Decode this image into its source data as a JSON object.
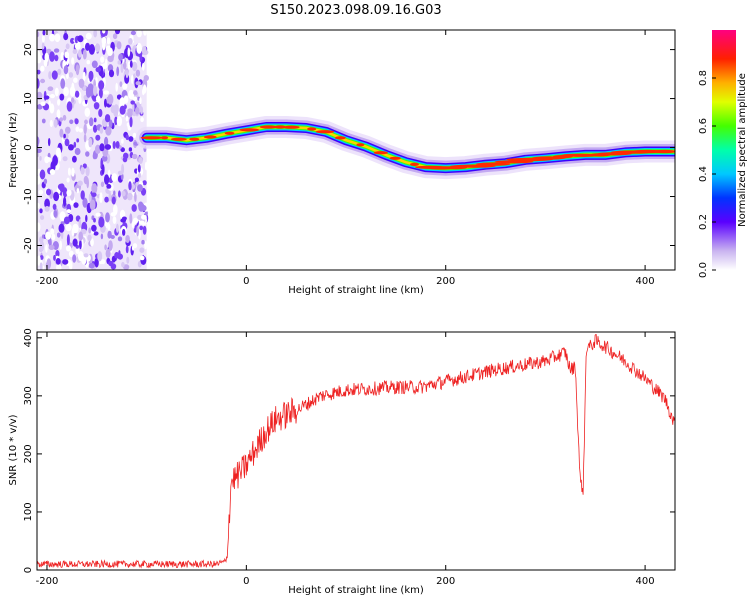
{
  "title": "S150.2023.098.09.16.G03",
  "chart_data": [
    {
      "type": "heatmap",
      "xlabel": "Height of straight line (km)",
      "ylabel": "Frequency (Hz)",
      "xlim": [
        -210,
        430
      ],
      "ylim": [
        -25,
        24
      ],
      "x_ticks": [
        -200,
        0,
        200,
        400
      ],
      "y_ticks": [
        -20,
        -10,
        0,
        10,
        20
      ],
      "colorbar": {
        "label": "Normalized spectral amplitude",
        "range": [
          0,
          1
        ],
        "ticks": [
          0.0,
          0.2,
          0.4,
          0.6,
          0.8
        ]
      },
      "noise_region_x": [
        -210,
        -100
      ],
      "ridge": {
        "x": [
          -100,
          -80,
          -60,
          -40,
          -20,
          0,
          20,
          40,
          60,
          80,
          100,
          120,
          140,
          160,
          180,
          200,
          220,
          240,
          260,
          280,
          300,
          320,
          340,
          360,
          380,
          400,
          430
        ],
        "freq": [
          2,
          2,
          1.5,
          2,
          2.8,
          3.5,
          4.2,
          4.2,
          4,
          3.2,
          1.5,
          0.2,
          -1.5,
          -3,
          -4,
          -4.2,
          -4,
          -3.5,
          -3.2,
          -2.5,
          -2.2,
          -1.8,
          -1.5,
          -1.5,
          -1,
          -0.8,
          -0.8
        ]
      }
    },
    {
      "type": "line",
      "xlabel": "Height of straight line (km)",
      "ylabel": "SNR (10 * v/v)",
      "xlim": [
        -210,
        430
      ],
      "ylim": [
        0,
        410
      ],
      "x_ticks": [
        -200,
        0,
        200,
        400
      ],
      "y_ticks": [
        0,
        100,
        200,
        300,
        400
      ],
      "color": "#ee2222",
      "envelope": {
        "x": [
          -210,
          -30,
          -20,
          -15,
          -10,
          0,
          10,
          20,
          30,
          50,
          75,
          100,
          150,
          175,
          200,
          250,
          300,
          320,
          325,
          330,
          335,
          338,
          341,
          345,
          350,
          360,
          380,
          400,
          420,
          430
        ],
        "y": [
          10,
          10,
          15,
          155,
          160,
          180,
          210,
          240,
          260,
          275,
          300,
          310,
          315,
          315,
          325,
          345,
          360,
          375,
          345,
          350,
          150,
          140,
          385,
          385,
          395,
          385,
          360,
          330,
          295,
          250
        ]
      }
    }
  ]
}
